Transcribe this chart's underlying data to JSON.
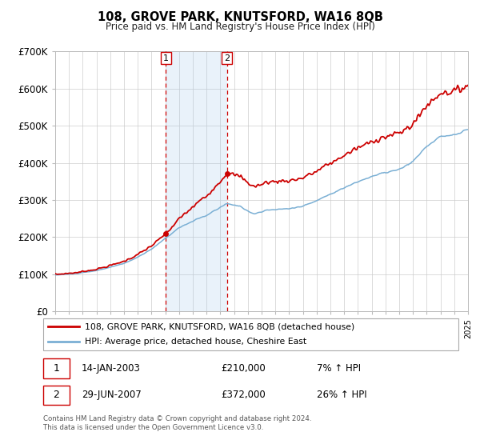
{
  "title": "108, GROVE PARK, KNUTSFORD, WA16 8QB",
  "subtitle": "Price paid vs. HM Land Registry's House Price Index (HPI)",
  "legend_line1": "108, GROVE PARK, KNUTSFORD, WA16 8QB (detached house)",
  "legend_line2": "HPI: Average price, detached house, Cheshire East",
  "transaction1_date": "14-JAN-2003",
  "transaction1_price": "£210,000",
  "transaction1_hpi": "7% ↑ HPI",
  "transaction1_year": 2003.04,
  "transaction2_date": "29-JUN-2007",
  "transaction2_price": "£372,000",
  "transaction2_hpi": "26% ↑ HPI",
  "transaction2_year": 2007.49,
  "red_line_color": "#cc0000",
  "blue_line_color": "#7aafd4",
  "shaded_color": "#ddeeff",
  "vline_color": "#cc0000",
  "grid_color": "#cccccc",
  "background_color": "#ffffff",
  "footnote1": "Contains HM Land Registry data © Crown copyright and database right 2024.",
  "footnote2": "This data is licensed under the Open Government Licence v3.0.",
  "ylim": [
    0,
    700000
  ],
  "yticks": [
    0,
    100000,
    200000,
    300000,
    400000,
    500000,
    600000,
    700000
  ],
  "ytick_labels": [
    "£0",
    "£100K",
    "£200K",
    "£300K",
    "£400K",
    "£500K",
    "£600K",
    "£700K"
  ],
  "xstart": 1995,
  "xend": 2025
}
